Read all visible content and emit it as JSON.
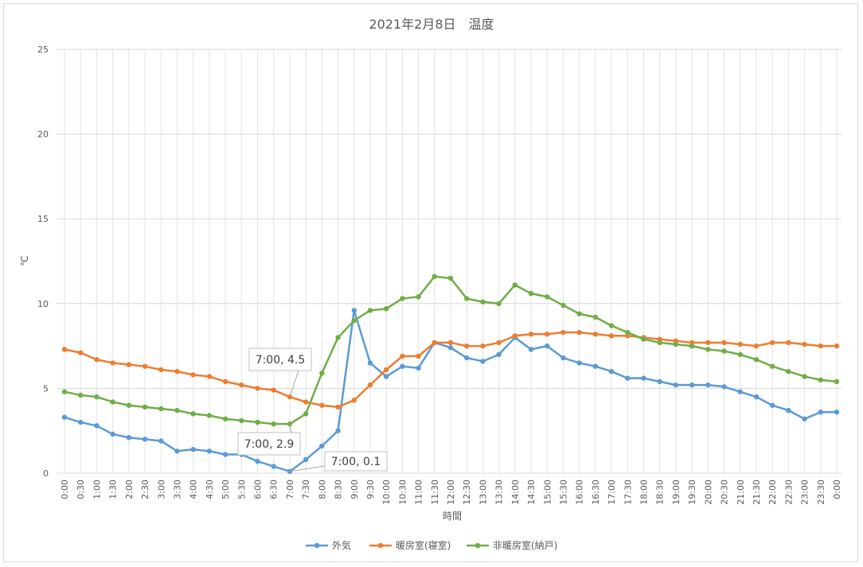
{
  "chart_data": {
    "type": "line",
    "title": "2021年2月8日　温度",
    "xlabel": "時間",
    "ylabel": "℃",
    "ylim": [
      0,
      25
    ],
    "yticks": [
      0,
      5,
      10,
      15,
      20,
      25
    ],
    "grid": true,
    "legend": "bottom",
    "categories": [
      "0:00",
      "0:30",
      "1:00",
      "1:30",
      "2:00",
      "2:30",
      "3:00",
      "3:30",
      "4:00",
      "4:30",
      "5:00",
      "5:30",
      "6:00",
      "6:30",
      "7:00",
      "7:30",
      "8:00",
      "8:30",
      "9:00",
      "9:30",
      "10:00",
      "10:30",
      "11:00",
      "11:30",
      "12:00",
      "12:30",
      "13:00",
      "13:30",
      "14:00",
      "14:30",
      "15:00",
      "15:30",
      "16:00",
      "16:30",
      "17:00",
      "17:30",
      "18:00",
      "18:30",
      "19:00",
      "19:30",
      "20:00",
      "20:30",
      "21:00",
      "21:30",
      "22:00",
      "22:30",
      "23:00",
      "23:30",
      "0:00"
    ],
    "series": [
      {
        "name": "外気",
        "color": "#5b9bd5",
        "values": [
          3.3,
          3.0,
          2.8,
          2.3,
          2.1,
          2.0,
          1.9,
          1.3,
          1.4,
          1.3,
          1.1,
          1.1,
          0.7,
          0.4,
          0.1,
          0.8,
          1.6,
          2.5,
          9.6,
          6.5,
          5.7,
          6.3,
          6.2,
          7.7,
          7.4,
          6.8,
          6.6,
          7.0,
          8.0,
          7.3,
          7.5,
          6.8,
          6.5,
          6.3,
          6.0,
          5.6,
          5.6,
          5.4,
          5.2,
          5.2,
          5.2,
          5.1,
          4.8,
          4.5,
          4.0,
          3.7,
          3.2,
          3.6,
          3.6
        ]
      },
      {
        "name": "暖房室(寝室)",
        "color": "#ed7d31",
        "values": [
          7.3,
          7.1,
          6.7,
          6.5,
          6.4,
          6.3,
          6.1,
          6.0,
          5.8,
          5.7,
          5.4,
          5.2,
          5.0,
          4.9,
          4.5,
          4.2,
          4.0,
          3.9,
          4.3,
          5.2,
          6.1,
          6.9,
          6.9,
          7.7,
          7.7,
          7.5,
          7.5,
          7.7,
          8.1,
          8.2,
          8.2,
          8.3,
          8.3,
          8.2,
          8.1,
          8.1,
          8.0,
          7.9,
          7.8,
          7.7,
          7.7,
          7.7,
          7.6,
          7.5,
          7.7,
          7.7,
          7.6,
          7.5,
          7.5
        ]
      },
      {
        "name": "非暖房室(納戸)",
        "color": "#70ad47",
        "values": [
          4.8,
          4.6,
          4.5,
          4.2,
          4.0,
          3.9,
          3.8,
          3.7,
          3.5,
          3.4,
          3.2,
          3.1,
          3.0,
          2.9,
          2.9,
          3.5,
          5.9,
          8.0,
          9.0,
          9.6,
          9.7,
          10.3,
          10.4,
          11.6,
          11.5,
          10.3,
          10.1,
          10.0,
          11.1,
          10.6,
          10.4,
          9.9,
          9.4,
          9.2,
          8.7,
          8.3,
          7.9,
          7.7,
          7.6,
          7.5,
          7.3,
          7.2,
          7.0,
          6.7,
          6.3,
          6.0,
          5.7,
          5.5,
          5.4
        ]
      }
    ],
    "annotations": [
      {
        "series": 1,
        "index": 14,
        "text": "7:00, 4.5"
      },
      {
        "series": 2,
        "index": 14,
        "text": "7:00, 2.9"
      },
      {
        "series": 0,
        "index": 14,
        "text": "7:00, 0.1"
      }
    ]
  }
}
